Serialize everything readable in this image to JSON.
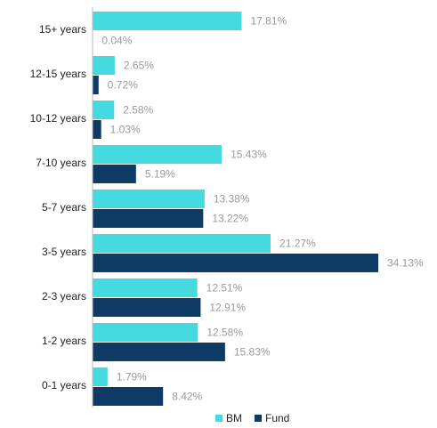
{
  "chart_data": {
    "type": "hbar",
    "categories": [
      "15+ years",
      "12-15 years",
      "10-12 years",
      "7-10 years",
      "5-7 years",
      "3-5 years",
      "2-3 years",
      "1-2 years",
      "0-1 years"
    ],
    "series": [
      {
        "name": "BM",
        "color": "#45d9e0",
        "values": [
          17.81,
          2.65,
          2.58,
          15.43,
          13.38,
          21.27,
          12.51,
          12.58,
          1.79
        ],
        "value_labels": [
          "17.81%",
          "2.65%",
          "2.58%",
          "15.43%",
          "13.38%",
          "21.27%",
          "12.51%",
          "12.58%",
          "1.79%"
        ]
      },
      {
        "name": "Fund",
        "color": "#0d3b66",
        "values": [
          0.04,
          0.72,
          1.03,
          5.19,
          13.22,
          34.13,
          12.91,
          15.83,
          8.42
        ],
        "value_labels": [
          "0.04%",
          "0.72%",
          "1.03%",
          "5.19%",
          "13.22%",
          "34.13%",
          "12.91%",
          "15.83%",
          "8.42%"
        ]
      }
    ],
    "legend": "bottom"
  }
}
